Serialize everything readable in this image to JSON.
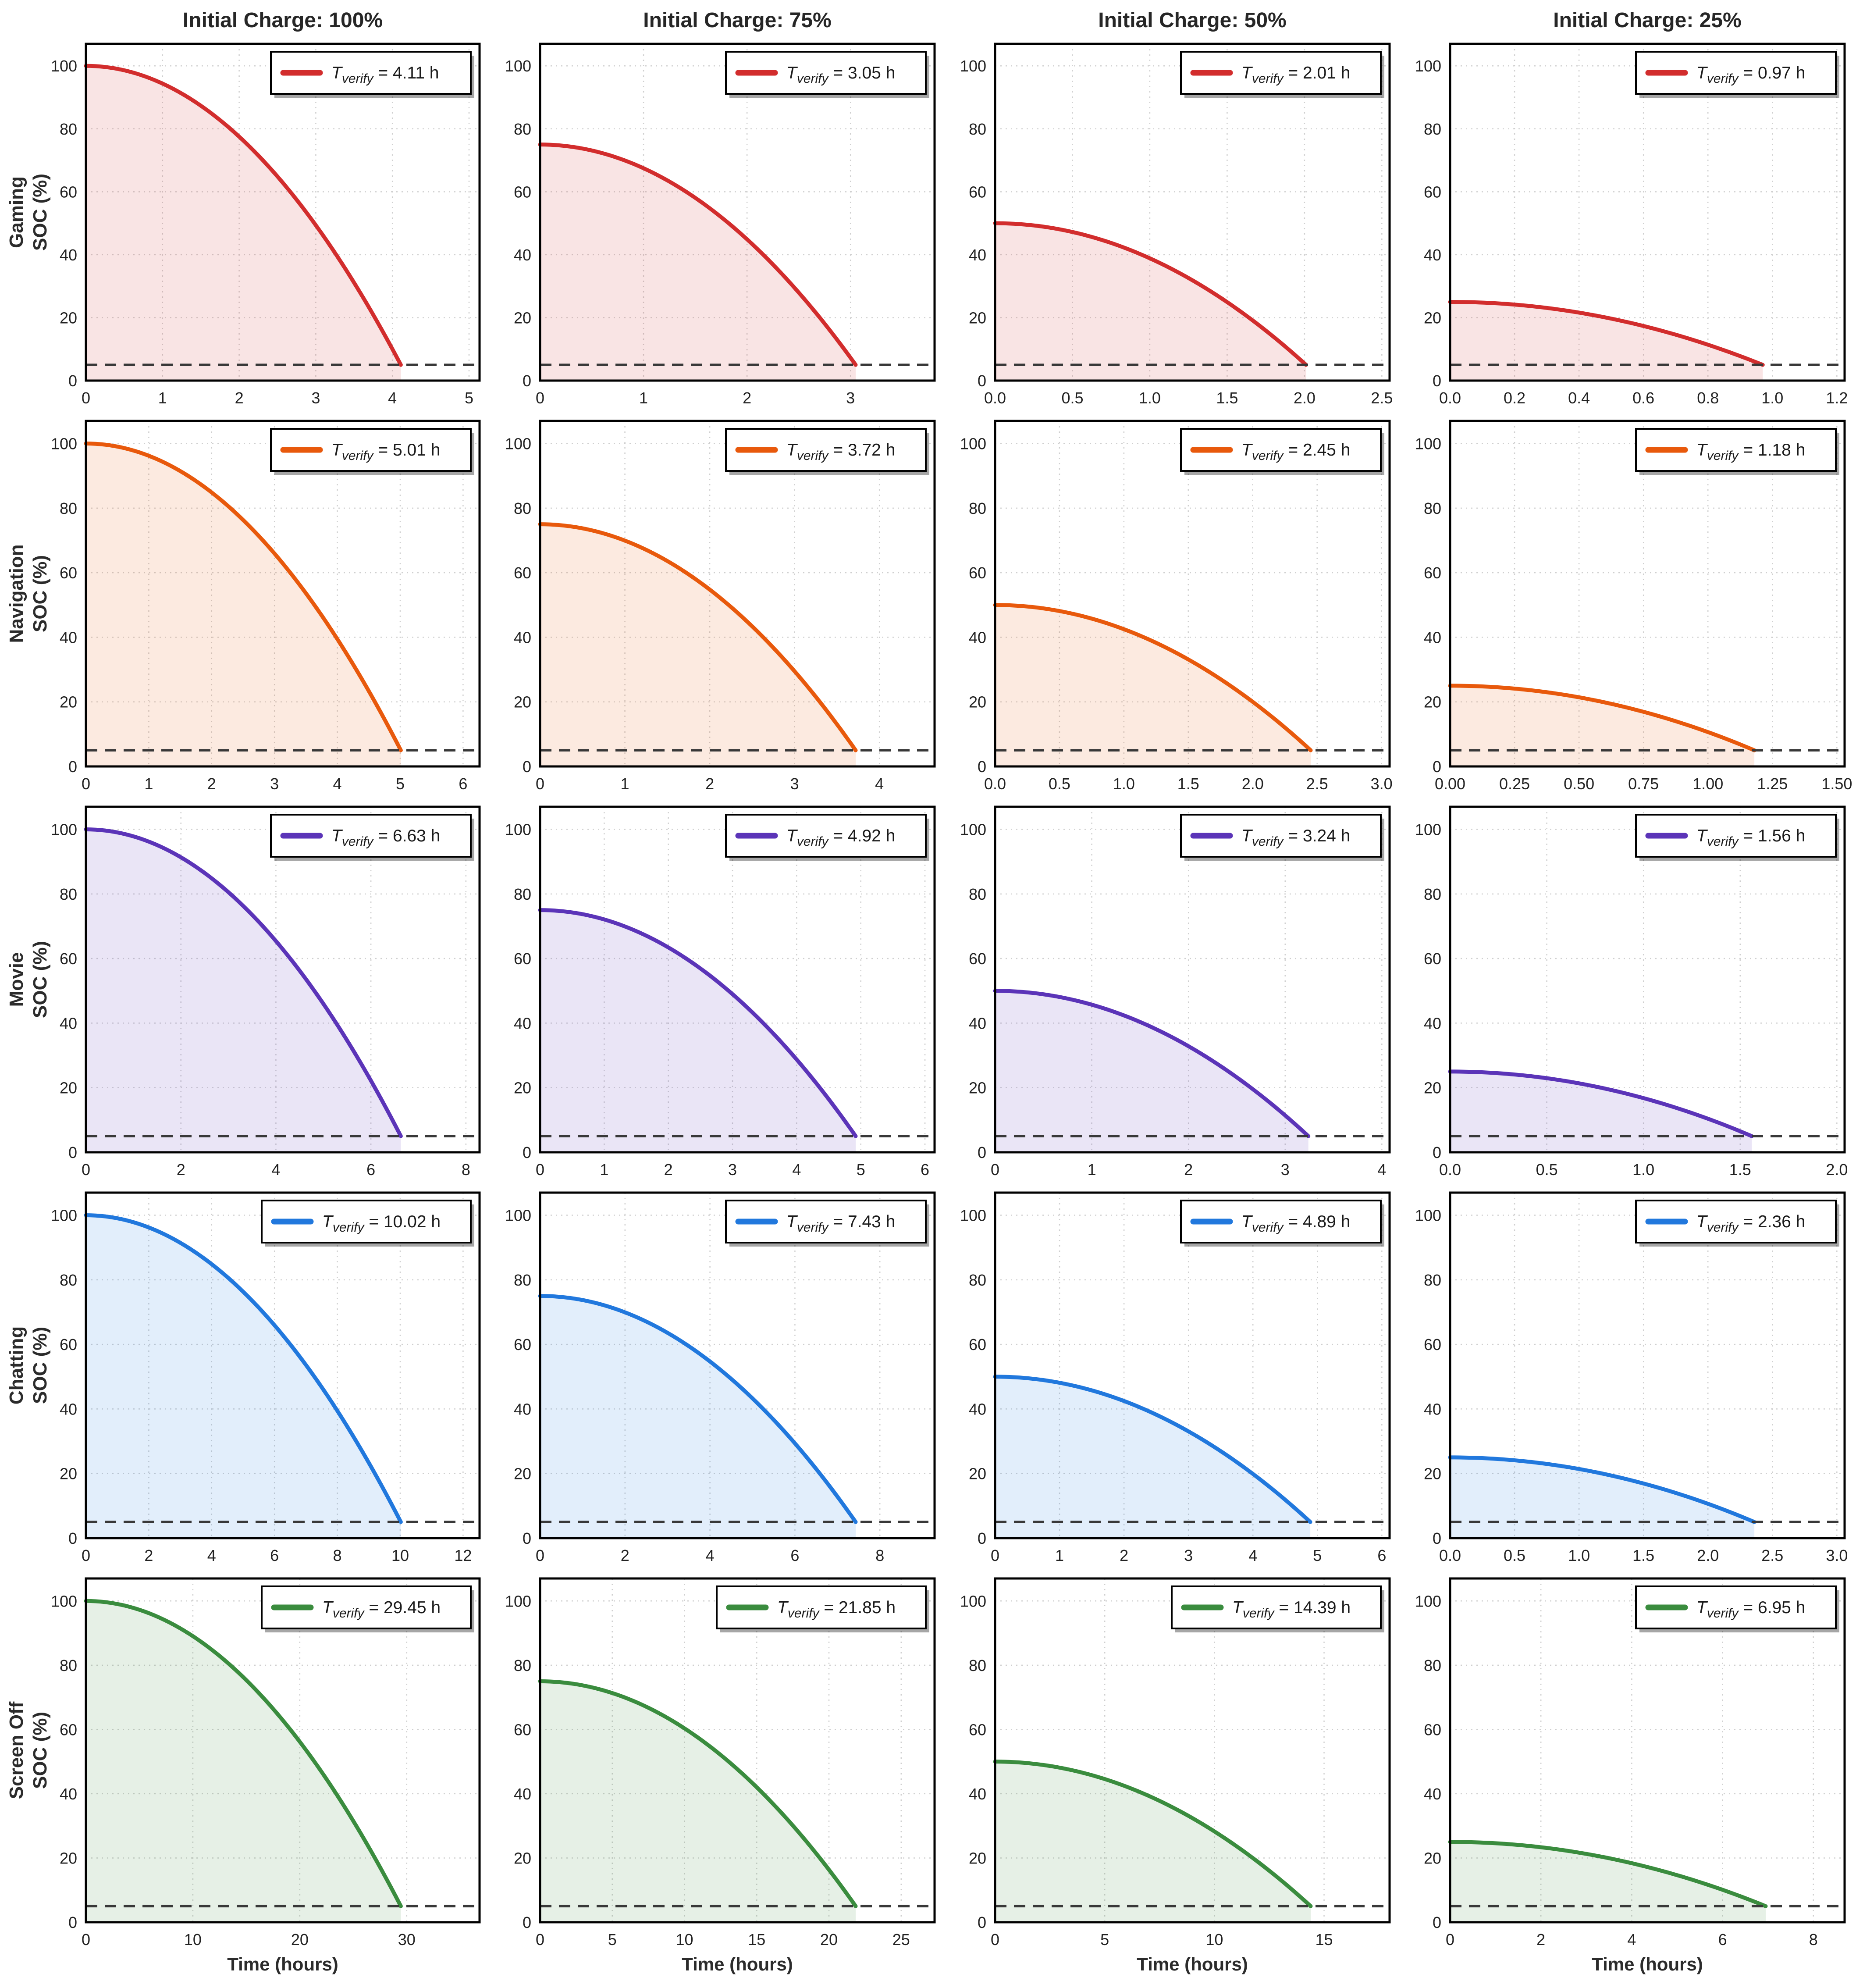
{
  "figure": {
    "background": "#ffffff",
    "threshold_line_color": "#383838",
    "grid_color": "#cfcfcf",
    "axis_color": "#000000",
    "tick_color": "#222222",
    "title_color": "#262626"
  },
  "chart_data": {
    "type": "line",
    "layout": "5 rows (usage modes) x 4 columns (initial charge)",
    "curve_model": "soc(t) = initial_soc - (initial_soc - threshold) * (t / t_verify)^2, drawn from t=0 to t=t_verify",
    "grid": true,
    "legend_position": "upper right",
    "threshold": 5,
    "ylim": [
      0,
      107
    ],
    "yticks": [
      "0",
      "20",
      "40",
      "60",
      "80",
      "100"
    ],
    "xlabel": "Time (hours)",
    "ylabel_line2": "SOC (%)",
    "legend_T": "T",
    "legend_sub": "verify",
    "legend_eq": " = ",
    "col_titles": [
      "Initial Charge: 100%",
      "Initial Charge: 75%",
      "Initial Charge: 50%",
      "Initial Charge: 25%"
    ],
    "initial_charges": [
      100,
      75,
      50,
      25
    ],
    "rows": [
      {
        "label": "Gaming",
        "color": "#d22d2d",
        "cells": [
          {
            "t_verify": 4.11,
            "t_verify_label": "4.11 h",
            "initial_soc": 100,
            "xticks": [
              "0",
              "1",
              "2",
              "3",
              "4",
              "5"
            ]
          },
          {
            "t_verify": 3.05,
            "t_verify_label": "3.05 h",
            "initial_soc": 75,
            "xticks": [
              "0",
              "1",
              "2",
              "3"
            ]
          },
          {
            "t_verify": 2.01,
            "t_verify_label": "2.01 h",
            "initial_soc": 50,
            "xticks": [
              "0.0",
              "0.5",
              "1.0",
              "1.5",
              "2.0",
              "2.5"
            ]
          },
          {
            "t_verify": 0.97,
            "t_verify_label": "0.97 h",
            "initial_soc": 25,
            "xticks": [
              "0.0",
              "0.2",
              "0.4",
              "0.6",
              "0.8",
              "1.0",
              "1.2"
            ]
          }
        ]
      },
      {
        "label": "Navigation",
        "color": "#e8590c",
        "cells": [
          {
            "t_verify": 5.01,
            "t_verify_label": "5.01 h",
            "initial_soc": 100,
            "xticks": [
              "0",
              "1",
              "2",
              "3",
              "4",
              "5",
              "6"
            ]
          },
          {
            "t_verify": 3.72,
            "t_verify_label": "3.72 h",
            "initial_soc": 75,
            "xticks": [
              "0",
              "1",
              "2",
              "3",
              "4"
            ]
          },
          {
            "t_verify": 2.45,
            "t_verify_label": "2.45 h",
            "initial_soc": 50,
            "xticks": [
              "0.0",
              "0.5",
              "1.0",
              "1.5",
              "2.0",
              "2.5",
              "3.0"
            ]
          },
          {
            "t_verify": 1.18,
            "t_verify_label": "1.18 h",
            "initial_soc": 25,
            "xticks": [
              "0.00",
              "0.25",
              "0.50",
              "0.75",
              "1.00",
              "1.25",
              "1.50"
            ]
          }
        ]
      },
      {
        "label": "Movie",
        "color": "#5b34b8",
        "cells": [
          {
            "t_verify": 6.63,
            "t_verify_label": "6.63 h",
            "initial_soc": 100,
            "xticks": [
              "0",
              "2",
              "4",
              "6",
              "8"
            ]
          },
          {
            "t_verify": 4.92,
            "t_verify_label": "4.92 h",
            "initial_soc": 75,
            "xticks": [
              "0",
              "1",
              "2",
              "3",
              "4",
              "5",
              "6"
            ]
          },
          {
            "t_verify": 3.24,
            "t_verify_label": "3.24 h",
            "initial_soc": 50,
            "xticks": [
              "0",
              "1",
              "2",
              "3",
              "4"
            ]
          },
          {
            "t_verify": 1.56,
            "t_verify_label": "1.56 h",
            "initial_soc": 25,
            "xticks": [
              "0.0",
              "0.5",
              "1.0",
              "1.5",
              "2.0"
            ]
          }
        ]
      },
      {
        "label": "Chatting",
        "color": "#2178dd",
        "cells": [
          {
            "t_verify": 10.02,
            "t_verify_label": "10.02 h",
            "initial_soc": 100,
            "xticks": [
              "0",
              "2",
              "4",
              "6",
              "8",
              "10",
              "12"
            ]
          },
          {
            "t_verify": 7.43,
            "t_verify_label": "7.43 h",
            "initial_soc": 75,
            "xticks": [
              "0",
              "2",
              "4",
              "6",
              "8"
            ]
          },
          {
            "t_verify": 4.89,
            "t_verify_label": "4.89 h",
            "initial_soc": 50,
            "xticks": [
              "0",
              "1",
              "2",
              "3",
              "4",
              "5",
              "6"
            ]
          },
          {
            "t_verify": 2.36,
            "t_verify_label": "2.36 h",
            "initial_soc": 25,
            "xticks": [
              "0.0",
              "0.5",
              "1.0",
              "1.5",
              "2.0",
              "2.5",
              "3.0"
            ]
          }
        ]
      },
      {
        "label": "Screen Off",
        "color": "#3a8c3e",
        "cells": [
          {
            "t_verify": 29.45,
            "t_verify_label": "29.45 h",
            "initial_soc": 100,
            "xticks": [
              "0",
              "10",
              "20",
              "30"
            ]
          },
          {
            "t_verify": 21.85,
            "t_verify_label": "21.85 h",
            "initial_soc": 75,
            "xticks": [
              "0",
              "5",
              "10",
              "15",
              "20",
              "25"
            ]
          },
          {
            "t_verify": 14.39,
            "t_verify_label": "14.39 h",
            "initial_soc": 50,
            "xticks": [
              "0",
              "5",
              "10",
              "15"
            ]
          },
          {
            "t_verify": 6.95,
            "t_verify_label": "6.95 h",
            "initial_soc": 25,
            "xticks": [
              "0",
              "2",
              "4",
              "6",
              "8"
            ]
          }
        ]
      }
    ]
  }
}
